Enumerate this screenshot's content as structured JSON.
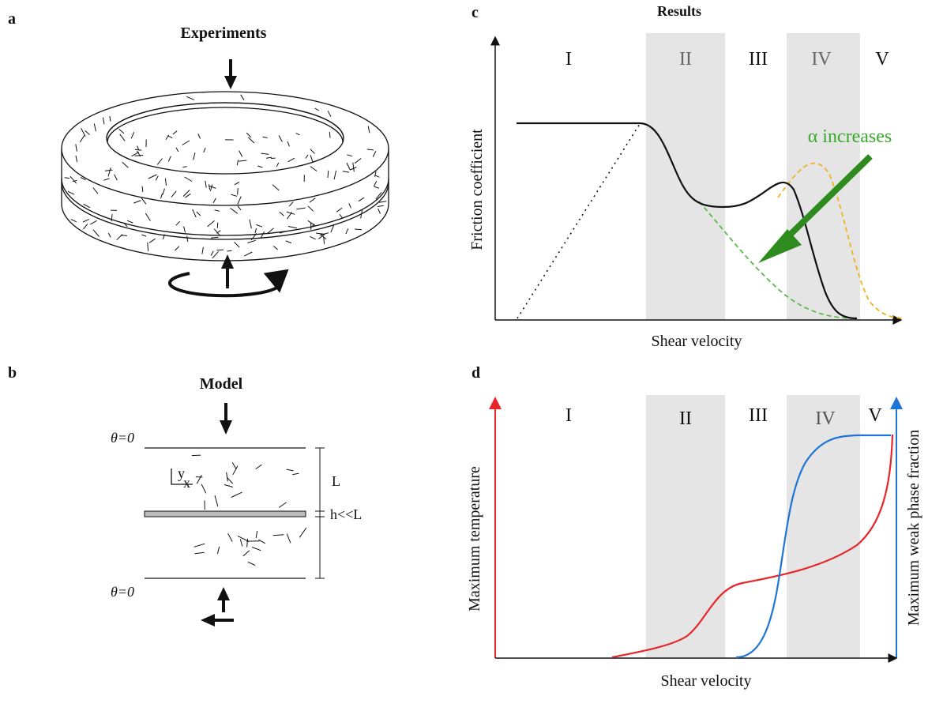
{
  "panel_a": {
    "letter": "a",
    "title": "Experiments"
  },
  "panel_b": {
    "letter": "b",
    "title": "Model",
    "theta_top": "θ=0",
    "theta_bottom": "θ=0",
    "axis_y": "y",
    "axis_x": "x",
    "dim_L": "L",
    "dim_h": "h<<L"
  },
  "panel_c": {
    "letter": "c",
    "title": "Results",
    "xlabel": "Shear velocity",
    "ylabel": "Friction coefficient",
    "regimes": [
      "I",
      "II",
      "III",
      "IV",
      "V"
    ],
    "annotation": "α increases",
    "colors": {
      "main": "#000000",
      "dashed_green": "#5cb84a",
      "dashed_orange": "#f0b21e",
      "arrow_green": "#2e8b1e",
      "band": "#e5e5e5"
    }
  },
  "panel_d": {
    "letter": "d",
    "xlabel": "Shear velocity",
    "ylabel_left": "Maximum temperature",
    "ylabel_right": "Maximum weak phase fraction",
    "regimes": [
      "I",
      "II",
      "III",
      "IV",
      "V"
    ],
    "colors": {
      "temperature": "#e8262a",
      "weak_phase": "#1f74d6",
      "band": "#e5e5e5"
    }
  }
}
